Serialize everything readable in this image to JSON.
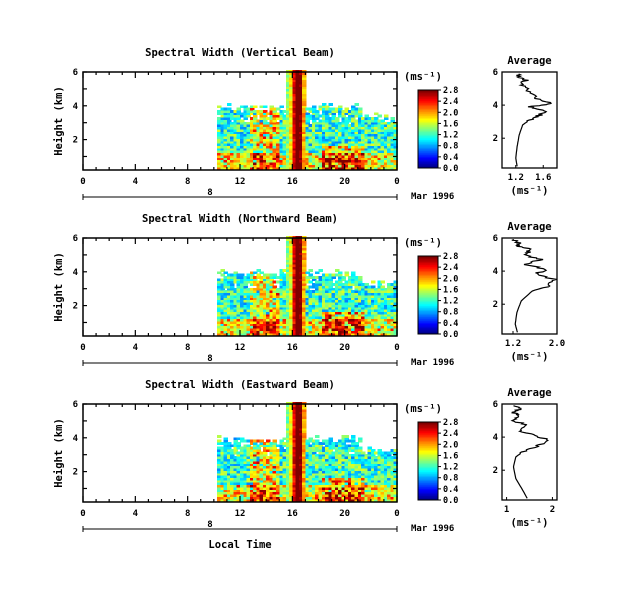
{
  "figure": {
    "xlabel": "Local Time",
    "date_label": "Mar 1996",
    "day_label": "8",
    "unit_label": "(ms⁻¹)"
  },
  "chart_data": [
    {
      "type": "heatmap",
      "title": "Spectral Width (Vertical Beam)",
      "ylabel": "Height (km)",
      "xlabel": "Local Time",
      "x_ticks": [
        "0",
        "4",
        "8",
        "12",
        "16",
        "20",
        "0"
      ],
      "xlim": [
        0,
        24
      ],
      "y_ticks": [
        "6",
        "4",
        "2"
      ],
      "ylim": [
        0.2,
        6.0
      ],
      "colorbar": {
        "label": "(ms⁻¹)",
        "ticks": [
          "0.0",
          "0.4",
          "0.8",
          "1.2",
          "1.6",
          "2.0",
          "2.4",
          "2.8"
        ],
        "range": [
          0.0,
          2.8
        ]
      },
      "data_extent": {
        "start_hour": 10.0,
        "end_hour": 24.0,
        "top_height_km": 4.2,
        "top_height_km_convective": 6.0
      },
      "features": [
        {
          "description_hour_center": 15.5,
          "peak_width": 2.8
        },
        {
          "description_hour_center": 16.5,
          "peak_width": 2.8
        }
      ]
    },
    {
      "type": "line",
      "title": "Average",
      "xlabel": "(ms⁻¹)",
      "x_ticks": [
        "1.2",
        "1.6"
      ],
      "xlim": [
        1.0,
        1.8
      ],
      "y_ticks": [
        "6",
        "4",
        "2"
      ],
      "ylim": [
        0.2,
        6.0
      ],
      "series": [
        {
          "x": [
            1.22,
            1.2,
            1.22,
            1.25,
            1.3,
            1.4,
            1.55,
            1.62,
            1.4,
            1.7,
            1.52,
            1.4,
            1.28,
            1.35,
            1.22,
            1.25
          ],
          "y": [
            0.3,
            0.8,
            1.5,
            2.2,
            2.8,
            3.1,
            3.4,
            3.7,
            3.9,
            4.1,
            4.4,
            4.8,
            5.2,
            5.5,
            5.7,
            5.9
          ]
        }
      ]
    },
    {
      "type": "heatmap",
      "title": "Spectral Width (Northward Beam)",
      "ylabel": "Height (km)",
      "xlabel": "Local Time",
      "x_ticks": [
        "0",
        "4",
        "8",
        "12",
        "16",
        "20",
        "0"
      ],
      "xlim": [
        0,
        24
      ],
      "y_ticks": [
        "6",
        "4",
        "2"
      ],
      "ylim": [
        0.2,
        6.0
      ],
      "colorbar": {
        "label": "(ms⁻¹)",
        "ticks": [
          "0.0",
          "0.4",
          "0.8",
          "1.2",
          "1.6",
          "2.0",
          "2.4",
          "2.8"
        ],
        "range": [
          0.0,
          2.8
        ]
      },
      "data_extent": {
        "start_hour": 10.0,
        "end_hour": 24.0,
        "top_height_km": 4.2,
        "top_height_km_convective": 6.0
      }
    },
    {
      "type": "line",
      "title": "Average",
      "xlabel": "(ms⁻¹)",
      "x_ticks": [
        "1.2",
        "2.0"
      ],
      "xlim": [
        1.0,
        2.0
      ],
      "y_ticks": [
        "6",
        "4",
        "2"
      ],
      "ylim": [
        0.2,
        6.0
      ],
      "series": [
        {
          "x": [
            1.28,
            1.24,
            1.27,
            1.35,
            1.55,
            1.85,
            1.95,
            1.6,
            1.8,
            1.45,
            1.7,
            1.38,
            1.55,
            1.25,
            1.3,
            1.22
          ],
          "y": [
            0.3,
            0.8,
            1.5,
            2.2,
            2.8,
            3.1,
            3.5,
            3.8,
            4.1,
            4.4,
            4.7,
            5.0,
            5.3,
            5.5,
            5.7,
            5.9
          ]
        }
      ]
    },
    {
      "type": "heatmap",
      "title": "Spectral Width (Eastward Beam)",
      "ylabel": "Height (km)",
      "xlabel": "Local Time",
      "x_ticks": [
        "0",
        "4",
        "8",
        "12",
        "16",
        "20",
        "0"
      ],
      "xlim": [
        0,
        24
      ],
      "y_ticks": [
        "6",
        "4",
        "2"
      ],
      "ylim": [
        0.2,
        6.0
      ],
      "colorbar": {
        "label": "(ms⁻¹)",
        "ticks": [
          "0.0",
          "0.4",
          "0.8",
          "1.2",
          "1.6",
          "2.0",
          "2.4",
          "2.8"
        ],
        "range": [
          0.0,
          2.8
        ]
      },
      "data_extent": {
        "start_hour": 10.0,
        "end_hour": 24.0,
        "top_height_km": 4.2,
        "top_height_km_convective": 6.0
      }
    },
    {
      "type": "line",
      "title": "Average",
      "xlabel": "(ms⁻¹)",
      "x_ticks": [
        "1",
        "2"
      ],
      "xlim": [
        0.9,
        2.1
      ],
      "y_ticks": [
        "6",
        "4",
        "2"
      ],
      "ylim": [
        0.2,
        6.0
      ],
      "series": [
        {
          "x": [
            1.45,
            1.35,
            1.2,
            1.15,
            1.2,
            1.35,
            1.7,
            1.95,
            1.6,
            1.3,
            1.45,
            1.15,
            1.3,
            1.1,
            1.3,
            1.15
          ],
          "y": [
            0.3,
            0.8,
            1.5,
            2.2,
            2.8,
            3.1,
            3.5,
            3.8,
            4.1,
            4.4,
            4.7,
            5.0,
            5.3,
            5.5,
            5.7,
            5.9
          ]
        }
      ]
    }
  ]
}
